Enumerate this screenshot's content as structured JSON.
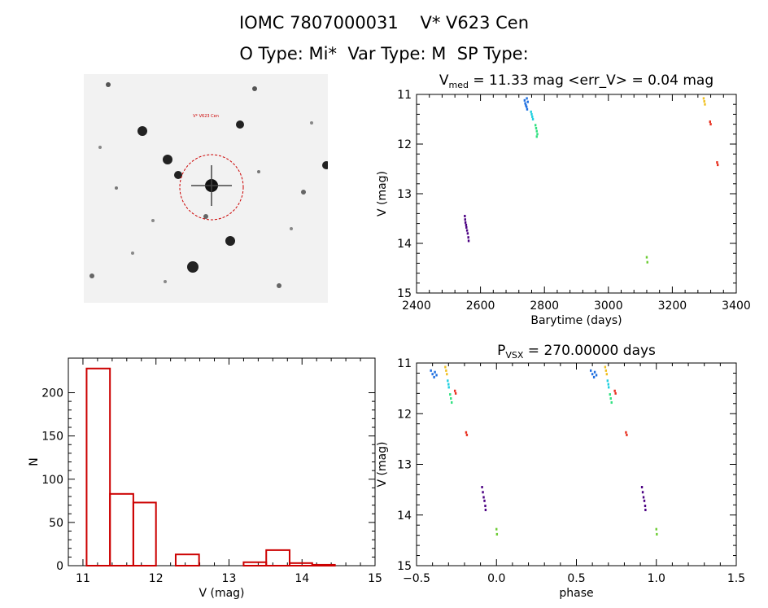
{
  "header": {
    "line1": "IOMC 7807000031    V* V623 Cen",
    "line2": "O Type: Mi*  Var Type: M  SP Type:"
  },
  "thumbnail": {
    "target_label": "V* V623 Cen",
    "circle_color": "#cc0000"
  },
  "chart_data": [
    {
      "id": "lightcurve",
      "type": "scatter",
      "title": "V_med = 11.33 mag <err_V> = 0.04 mag",
      "title_parts": {
        "v": "V",
        "sub": "med",
        "rest": " = 11.33 mag <err_V> = 0.04 mag"
      },
      "xlabel": "Barytime (days)",
      "ylabel": "V (mag)",
      "xlim": [
        2400,
        3400
      ],
      "ylim": [
        15,
        11
      ],
      "y_inverted": true,
      "xticks": [
        2400,
        2600,
        2800,
        3000,
        3200,
        3400
      ],
      "yticks": [
        11,
        12,
        13,
        14,
        15
      ],
      "grid": false,
      "groups": [
        {
          "color": "#4b0082",
          "points": [
            [
              2551,
              13.45
            ],
            [
              2552,
              13.52
            ],
            [
              2553,
              13.58
            ],
            [
              2555,
              13.63
            ],
            [
              2556,
              13.68
            ],
            [
              2558,
              13.74
            ],
            [
              2560,
              13.8
            ],
            [
              2562,
              13.88
            ],
            [
              2563,
              13.95
            ]
          ]
        },
        {
          "color": "#1f6fe0",
          "points": [
            [
              2738,
              11.12
            ],
            [
              2740,
              11.18
            ],
            [
              2742,
              11.22
            ],
            [
              2744,
              11.25
            ],
            [
              2746,
              11.3
            ],
            [
              2748,
              11.15
            ],
            [
              2745,
              11.08
            ]
          ]
        },
        {
          "color": "#20d0e0",
          "points": [
            [
              2758,
              11.35
            ],
            [
              2760,
              11.4
            ],
            [
              2762,
              11.45
            ],
            [
              2764,
              11.5
            ]
          ]
        },
        {
          "color": "#30e080",
          "points": [
            [
              2772,
              11.62
            ],
            [
              2774,
              11.68
            ],
            [
              2776,
              11.74
            ],
            [
              2778,
              11.8
            ],
            [
              2776,
              11.85
            ]
          ]
        },
        {
          "color": "#6ccc33",
          "points": [
            [
              3120,
              14.28
            ],
            [
              3122,
              14.38
            ]
          ]
        },
        {
          "color": "#f0c020",
          "points": [
            [
              3298,
              11.08
            ],
            [
              3300,
              11.14
            ],
            [
              3302,
              11.2
            ]
          ]
        },
        {
          "color": "#e83020",
          "points": [
            [
              3318,
              11.55
            ],
            [
              3320,
              11.6
            ],
            [
              3340,
              12.37
            ],
            [
              3342,
              12.42
            ]
          ]
        }
      ]
    },
    {
      "id": "histogram",
      "type": "bar",
      "xlabel": "V (mag)",
      "ylabel": "N",
      "xlim": [
        10.8,
        15
      ],
      "ylim": [
        0,
        240
      ],
      "xticks": [
        11,
        12,
        13,
        14,
        15
      ],
      "yticks": [
        0,
        50,
        100,
        150,
        200
      ],
      "bar_color": "#cc0000",
      "bins": [
        {
          "x0": 11.05,
          "x1": 11.37,
          "n": 228
        },
        {
          "x0": 11.37,
          "x1": 11.69,
          "n": 83
        },
        {
          "x0": 11.69,
          "x1": 12.0,
          "n": 73
        },
        {
          "x0": 12.27,
          "x1": 12.59,
          "n": 13
        },
        {
          "x0": 13.2,
          "x1": 13.51,
          "n": 4
        },
        {
          "x0": 13.51,
          "x1": 13.83,
          "n": 18
        },
        {
          "x0": 13.83,
          "x1": 14.14,
          "n": 3
        },
        {
          "x0": 14.14,
          "x1": 14.45,
          "n": 1
        }
      ]
    },
    {
      "id": "phased",
      "type": "scatter",
      "title": "P_VSX = 270.00000 days",
      "title_parts": {
        "v": "P",
        "sub": "VSX",
        "rest": " = 270.00000 days"
      },
      "xlabel": "phase",
      "ylabel": "V (mag)",
      "xlim": [
        -0.5,
        1.5
      ],
      "ylim": [
        15,
        11
      ],
      "y_inverted": true,
      "xticks": [
        -0.5,
        0.0,
        0.5,
        1.0,
        1.5
      ],
      "xtick_labels": [
        "−0.5",
        "0.0",
        "0.5",
        "1.0",
        "1.5"
      ],
      "yticks": [
        11,
        12,
        13,
        14,
        15
      ],
      "grid": false,
      "groups": [
        {
          "color": "#1f6fe0",
          "points": [
            [
              -0.41,
              11.15
            ],
            [
              -0.4,
              11.22
            ],
            [
              -0.39,
              11.28
            ],
            [
              -0.385,
              11.18
            ],
            [
              -0.375,
              11.24
            ],
            [
              0.59,
              11.15
            ],
            [
              0.6,
              11.22
            ],
            [
              0.61,
              11.28
            ],
            [
              0.615,
              11.18
            ],
            [
              0.625,
              11.24
            ]
          ]
        },
        {
          "color": "#f0c020",
          "points": [
            [
              -0.32,
              11.08
            ],
            [
              -0.315,
              11.15
            ],
            [
              -0.31,
              11.22
            ],
            [
              0.68,
              11.08
            ],
            [
              0.685,
              11.15
            ],
            [
              0.69,
              11.22
            ]
          ]
        },
        {
          "color": "#20d0e0",
          "points": [
            [
              -0.305,
              11.35
            ],
            [
              -0.3,
              11.42
            ],
            [
              -0.298,
              11.48
            ],
            [
              0.695,
              11.35
            ],
            [
              0.7,
              11.42
            ],
            [
              0.702,
              11.48
            ]
          ]
        },
        {
          "color": "#30e080",
          "points": [
            [
              -0.29,
              11.62
            ],
            [
              -0.285,
              11.7
            ],
            [
              -0.28,
              11.78
            ],
            [
              0.71,
              11.62
            ],
            [
              0.715,
              11.7
            ],
            [
              0.72,
              11.78
            ]
          ]
        },
        {
          "color": "#e83020",
          "points": [
            [
              -0.26,
              11.55
            ],
            [
              -0.255,
              11.6
            ],
            [
              -0.19,
              12.37
            ],
            [
              -0.185,
              12.42
            ],
            [
              0.74,
              11.55
            ],
            [
              0.745,
              11.6
            ],
            [
              0.81,
              12.37
            ],
            [
              0.815,
              12.42
            ]
          ]
        },
        {
          "color": "#4b0082",
          "points": [
            [
              -0.09,
              13.45
            ],
            [
              -0.085,
              13.55
            ],
            [
              -0.08,
              13.65
            ],
            [
              -0.075,
              13.72
            ],
            [
              -0.07,
              13.82
            ],
            [
              -0.068,
              13.9
            ],
            [
              0.91,
              13.45
            ],
            [
              0.915,
              13.55
            ],
            [
              0.92,
              13.65
            ],
            [
              0.925,
              13.72
            ],
            [
              0.93,
              13.82
            ],
            [
              0.932,
              13.9
            ]
          ]
        },
        {
          "color": "#6ccc33",
          "points": [
            [
              0.0,
              14.28
            ],
            [
              0.003,
              14.38
            ],
            [
              1.0,
              14.28
            ],
            [
              1.003,
              14.38
            ]
          ]
        }
      ]
    }
  ]
}
